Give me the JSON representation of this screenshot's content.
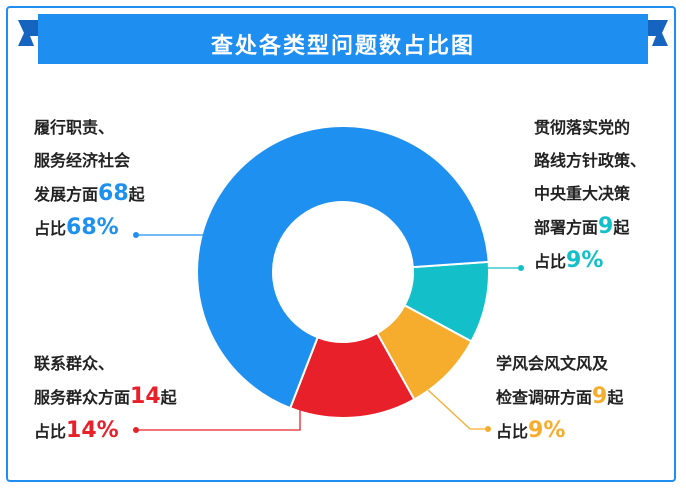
{
  "title": "查处各类型问题数占比图",
  "colors": {
    "frame": "#1f8ef1",
    "banner": "#1f8ef1",
    "banner_dark": "#1565c0"
  },
  "chart_data": {
    "type": "pie",
    "variant": "donut",
    "title": "查处各类型问题数占比图",
    "categories": [
      "履行职责、服务经济社会发展方面",
      "贯彻落实党的路线方针政策、中央重大决策部署方面",
      "学风会风文风及检查调研方面",
      "联系群众、服务群众方面"
    ],
    "values": [
      68,
      9,
      9,
      14
    ],
    "percents": [
      68,
      9,
      9,
      14
    ],
    "colors": [
      "#1e90f0",
      "#13bfc8",
      "#f6ad2e",
      "#e8202a"
    ],
    "unit": "起"
  },
  "labels": {
    "blue": {
      "line1": "履行职责、",
      "line2": "服务经济社会",
      "line3_pre": "发展方面",
      "count": "68",
      "unit": "起",
      "pct_pre": "占比",
      "pct": "68%"
    },
    "teal": {
      "line1": "贯彻落实党的",
      "line2": "路线方针政策、",
      "line3": "中央重大决策",
      "line4_pre": "部署方面",
      "count": "9",
      "unit": "起",
      "pct_pre": "占比",
      "pct": "9%"
    },
    "orange": {
      "line1": "学风会风文风及",
      "line2_pre": "检查调研方面",
      "count": "9",
      "unit": "起",
      "pct_pre": "占比",
      "pct": "9%"
    },
    "red": {
      "line1": "联系群众、",
      "line2_pre": "服务群众方面",
      "count": "14",
      "unit": "起",
      "pct_pre": "占比",
      "pct": "14%"
    }
  }
}
